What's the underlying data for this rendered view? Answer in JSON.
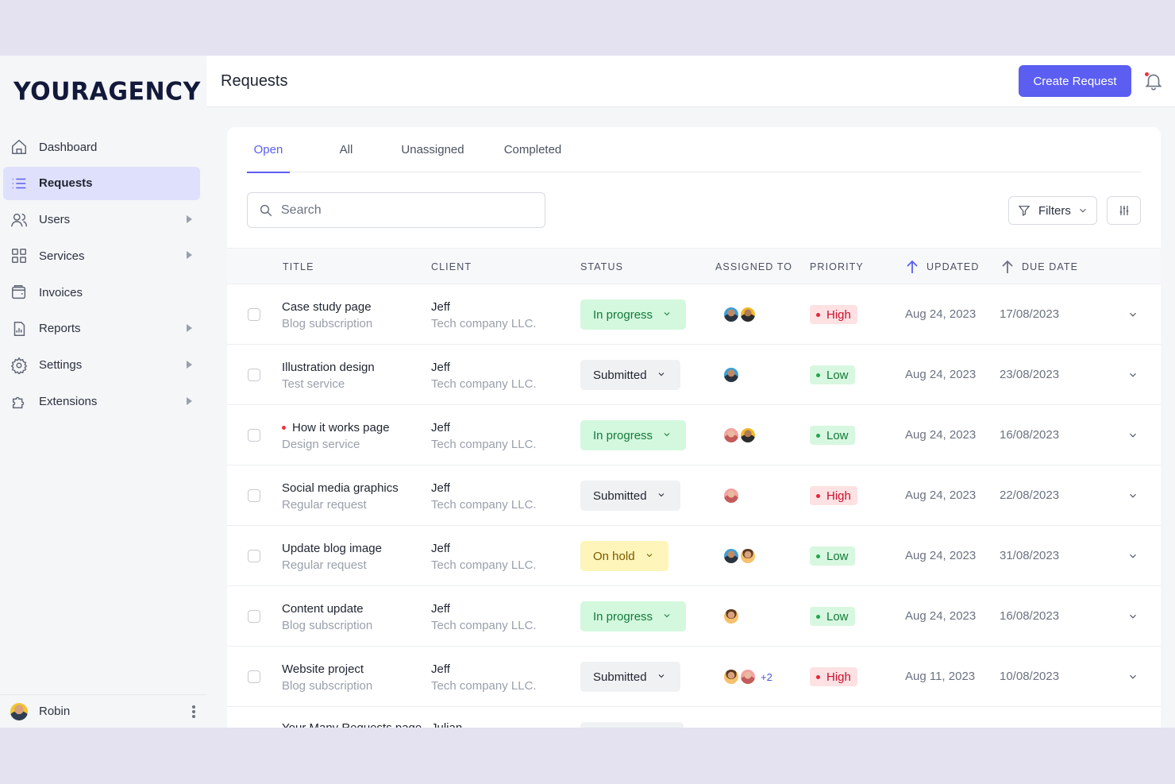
{
  "brand": {
    "logo": "YOURAGENCY"
  },
  "sidebar": {
    "items": [
      {
        "label": "Dashboard",
        "icon": "home-icon",
        "active": false,
        "caret": false
      },
      {
        "label": "Requests",
        "icon": "list-icon",
        "active": true,
        "caret": false
      },
      {
        "label": "Users",
        "icon": "users-icon",
        "active": false,
        "caret": true
      },
      {
        "label": "Services",
        "icon": "grid-icon",
        "active": false,
        "caret": true
      },
      {
        "label": "Invoices",
        "icon": "wallet-icon",
        "active": false,
        "caret": false
      },
      {
        "label": "Reports",
        "icon": "chart-icon",
        "active": false,
        "caret": true
      },
      {
        "label": "Settings",
        "icon": "gear-icon",
        "active": false,
        "caret": true
      },
      {
        "label": "Extensions",
        "icon": "puzzle-icon",
        "active": false,
        "caret": true
      }
    ],
    "user": {
      "name": "Robin"
    }
  },
  "header": {
    "title": "Requests",
    "create_label": "Create Request"
  },
  "tabs": [
    {
      "label": "Open",
      "active": true
    },
    {
      "label": "All",
      "active": false
    },
    {
      "label": "Unassigned",
      "active": false
    },
    {
      "label": "Completed",
      "active": false
    }
  ],
  "toolbar": {
    "search_placeholder": "Search",
    "filters_label": "Filters"
  },
  "table": {
    "columns": {
      "title": "TITLE",
      "client": "CLIENT",
      "status": "STATUS",
      "assigned": "ASSIGNED TO",
      "priority": "PRIORITY",
      "updated": "UPDATED",
      "due": "DUE DATE"
    },
    "rows": [
      {
        "title": "Case study page",
        "subtitle": "Blog subscription",
        "client": "Jeff",
        "company": "Tech company LLC.",
        "status": "In progress",
        "status_kind": "progress",
        "avatars": [
          "a",
          "b"
        ],
        "more": "",
        "priority": "High",
        "priority_kind": "high",
        "updated": "Aug 24, 2023",
        "due": "17/08/2023",
        "unread": false
      },
      {
        "title": "Illustration design",
        "subtitle": "Test service",
        "client": "Jeff",
        "company": "Tech company LLC.",
        "status": "Submitted",
        "status_kind": "submitted",
        "avatars": [
          "a"
        ],
        "more": "",
        "priority": "Low",
        "priority_kind": "low",
        "updated": "Aug 24, 2023",
        "due": "23/08/2023",
        "unread": false
      },
      {
        "title": "How it works page",
        "subtitle": "Design service",
        "client": "Jeff",
        "company": "Tech company LLC.",
        "status": "In progress",
        "status_kind": "progress",
        "avatars": [
          "c",
          "b"
        ],
        "more": "",
        "priority": "Low",
        "priority_kind": "low",
        "updated": "Aug 24, 2023",
        "due": "16/08/2023",
        "unread": true
      },
      {
        "title": "Social media graphics",
        "subtitle": "Regular request",
        "client": "Jeff",
        "company": "Tech company LLC.",
        "status": "Submitted",
        "status_kind": "submitted",
        "avatars": [
          "c"
        ],
        "more": "",
        "priority": "High",
        "priority_kind": "high",
        "updated": "Aug 24, 2023",
        "due": "22/08/2023",
        "unread": false
      },
      {
        "title": "Update blog image",
        "subtitle": "Regular request",
        "client": "Jeff",
        "company": "Tech company LLC.",
        "status": "On hold",
        "status_kind": "hold",
        "avatars": [
          "a",
          "d"
        ],
        "more": "",
        "priority": "Low",
        "priority_kind": "low",
        "updated": "Aug 24, 2023",
        "due": "31/08/2023",
        "unread": false
      },
      {
        "title": "Content update",
        "subtitle": "Blog subscription",
        "client": "Jeff",
        "company": "Tech company LLC.",
        "status": "In progress",
        "status_kind": "progress",
        "avatars": [
          "d"
        ],
        "more": "",
        "priority": "Low",
        "priority_kind": "low",
        "updated": "Aug 24, 2023",
        "due": "16/08/2023",
        "unread": false
      },
      {
        "title": "Website project",
        "subtitle": "Blog subscription",
        "client": "Jeff",
        "company": "Tech company LLC.",
        "status": "Submitted",
        "status_kind": "submitted",
        "avatars": [
          "d",
          "c"
        ],
        "more": "+2",
        "priority": "High",
        "priority_kind": "high",
        "updated": "Aug 11, 2023",
        "due": "10/08/2023",
        "unread": false
      }
    ],
    "partial_row": {
      "title": "Your Many Requests page",
      "client": "Julian"
    }
  },
  "colors": {
    "accent": "#5b5ef0",
    "high": "#c8102e",
    "low": "#157a3a"
  }
}
